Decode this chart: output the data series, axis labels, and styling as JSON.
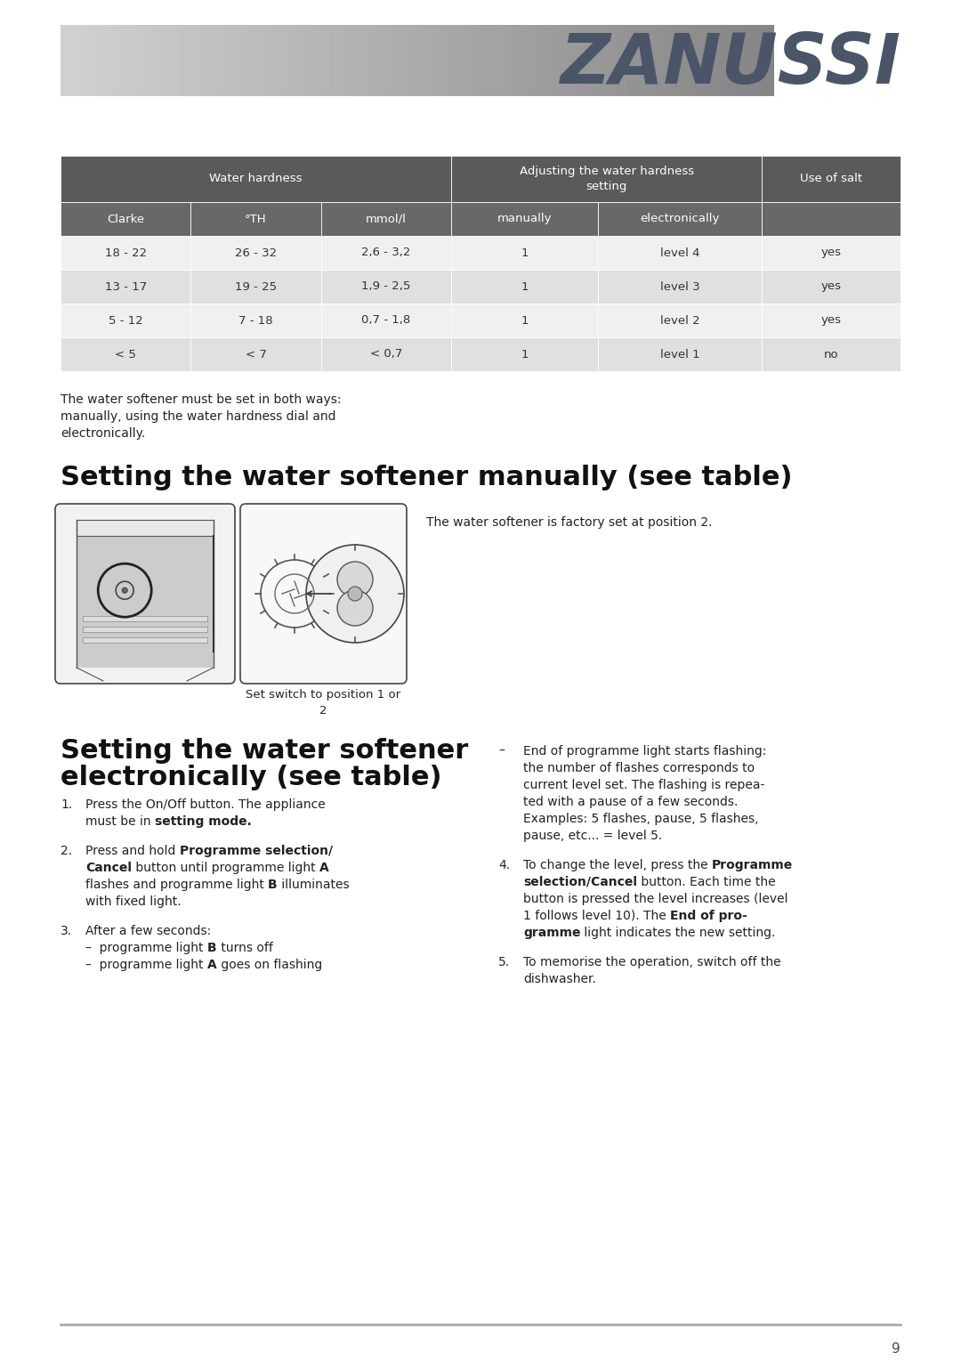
{
  "brand": "ZANUSSI",
  "brand_color": "#4a5568",
  "table_header_bg": "#5a5a5a",
  "table_subheader_bg": "#686868",
  "row_light_bg": "#f0f0f0",
  "row_medium_bg": "#e0e0e0",
  "page_bg": "#ffffff",
  "table_text_color": "#ffffff",
  "table_data_color": "#333333",
  "table_data2_color": "#555555",
  "text_color": "#222222",
  "table_columns": [
    "Clarke",
    "°TH",
    "mmol/l",
    "manually",
    "electronically",
    "Use of salt"
  ],
  "table_subheaders": [
    "Clarke",
    "°TH",
    "mmol/l",
    "manually",
    "electronically",
    ""
  ],
  "table_data": [
    [
      "18 - 22",
      "26 - 32",
      "2,6 - 3,2",
      "1",
      "level 4",
      "yes"
    ],
    [
      "13 - 17",
      "19 - 25",
      "1,9 - 2,5",
      "1",
      "level 3",
      "yes"
    ],
    [
      "5 - 12",
      "7 - 18",
      "0,7 - 1,8",
      "1",
      "level 2",
      "yes"
    ],
    [
      "< 5",
      "< 7",
      "< 0,7",
      "1",
      "level 1",
      "no"
    ]
  ],
  "para1_line1": "The water softener must be set in both ways:",
  "para1_line2": "manually, using the water hardness dial and",
  "para1_line3": "electronically.",
  "section1_title": "Setting the water softener manually (see table)",
  "caption_img": "Set switch to position 1 or",
  "caption_img2": "2",
  "caption_right": "The water softener is factory set at position 2.",
  "section2_title_line1": "Setting the water softener",
  "section2_title_line2": "electronically (see table)",
  "left_items": [
    {
      "num": "1.",
      "lines": [
        "Press the On/Off button. The appliance",
        "must be in ␣setting mode."
      ]
    },
    {
      "num": "2.",
      "lines": [
        "Press and hold ␣Programme selection/",
        "␣Cancel␣ button until programme light ␣A",
        "flashes and programme light ␣B␣ illuminates",
        "with fixed light."
      ]
    },
    {
      "num": "3.",
      "lines": [
        "After a few seconds:",
        "–  programme light ␣B␣ turns off",
        "–  programme light ␣A␣ goes on flashing"
      ]
    }
  ],
  "right_items": [
    {
      "num": "–",
      "lines": [
        "End of programme light starts flashing:",
        "the number of flashes corresponds to",
        "current level set. The flashing is repea-",
        "ted with a pause of a few seconds.",
        "Examples: 5 flashes, pause, 5 flashes,",
        "pause, etc... = level 5."
      ]
    },
    {
      "num": "4.",
      "lines": [
        "To change the level, press the ␣Programme",
        "␣selection/Cancel␣ button. Each time the",
        "button is pressed the level increases (level",
        "1 follows level 10). The ␣End of pro-",
        "␣gramme␣ light indicates the new setting."
      ]
    },
    {
      "num": "5.",
      "lines": [
        "To memorise the operation, switch off the",
        "dishwasher."
      ]
    }
  ],
  "footer_line_color": "#aaaaaa",
  "page_number": "9"
}
